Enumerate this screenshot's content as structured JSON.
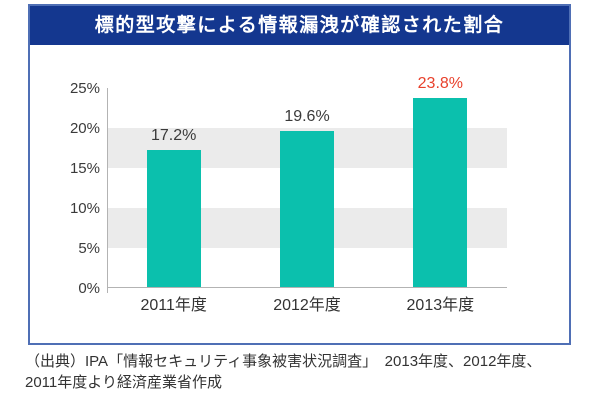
{
  "page": {
    "title_banner": "標的型攻撃による情報漏洩が確認された割合",
    "source_note": "（出典）IPA「情報セキュリティ事象被害状況調査」　2013年度、2012年度、\n2011年度より経済産業省作成"
  },
  "chart_data": {
    "type": "bar",
    "title": "標的型攻撃による情報漏洩が確認された割合",
    "categories": [
      "2011年度",
      "2012年度",
      "2013年度"
    ],
    "values": [
      17.2,
      19.6,
      23.8
    ],
    "value_labels": [
      "17.2%",
      "19.6%",
      "23.8%"
    ],
    "value_label_colors": [
      "#3a3a3a",
      "#3a3a3a",
      "#e8412c"
    ],
    "xlabel": "",
    "ylabel": "",
    "ylim": [
      0,
      25
    ],
    "ytick_step": 5,
    "ytick_labels": [
      "0%",
      "5%",
      "10%",
      "15%",
      "20%",
      "25%"
    ],
    "grid": "alternating-horizontal-bands",
    "legend_position": "none",
    "bar_color": "#0bc0ad",
    "band_color": "#ebebeb"
  },
  "colors": {
    "banner_bg": "#14378f",
    "panel_border": "#4f6fb5",
    "axis": "#b3b3b3",
    "text": "#333333"
  }
}
